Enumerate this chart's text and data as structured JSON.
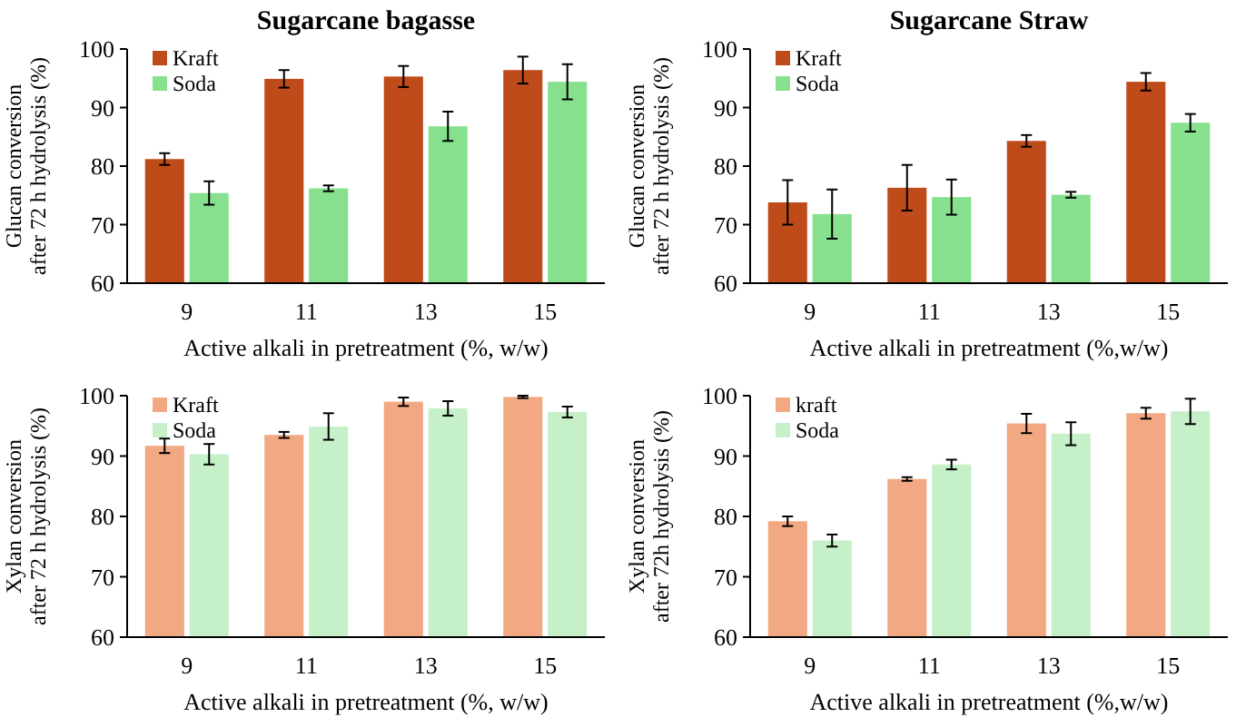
{
  "chart_data": [
    {
      "type": "bar",
      "title": "Sugarcane  bagasse",
      "xlabel": "Active alkali  in pretreatment (%, w/w)",
      "ylabel": "Glucan conversion\nafter 72 h hydrolysis  (%)",
      "categories": [
        "9",
        "11",
        "13",
        "15"
      ],
      "ylim": [
        60,
        100
      ],
      "yticks": [
        60,
        70,
        80,
        90,
        100
      ],
      "legend": "top left",
      "grid": false,
      "series": [
        {
          "name": "Kraft",
          "color": "#c04b1a",
          "values": [
            81.2,
            94.9,
            95.3,
            96.4
          ],
          "errors": [
            1,
            1.5,
            1.8,
            2.3
          ]
        },
        {
          "name": "Soda",
          "color": "#86e08e",
          "values": [
            75.4,
            76.2,
            86.8,
            94.4
          ],
          "errors": [
            2,
            0.5,
            2.5,
            3
          ]
        }
      ]
    },
    {
      "type": "bar",
      "title": "Sugarcane  Straw",
      "xlabel": "Active alkali  in pretreatment (%,w/w)",
      "ylabel": "Glucan conversion\nafter 72 h hydrolysis (%)",
      "categories": [
        "9",
        "11",
        "13",
        "15"
      ],
      "ylim": [
        60,
        100
      ],
      "yticks": [
        60,
        70,
        80,
        90,
        100
      ],
      "legend": "top left",
      "grid": false,
      "series": [
        {
          "name": "Kraft",
          "color": "#c04b1a",
          "values": [
            73.8,
            76.3,
            84.3,
            94.4
          ],
          "errors": [
            3.8,
            3.9,
            1,
            1.5
          ]
        },
        {
          "name": "Soda",
          "color": "#86e08e",
          "values": [
            71.8,
            74.7,
            75.1,
            87.4
          ],
          "errors": [
            4.2,
            3,
            0.5,
            1.5
          ]
        }
      ]
    },
    {
      "type": "bar",
      "xlabel": "Active alkali  in pretreatment (%, w/w)",
      "ylabel": "Xylan conversion\nafter 72 h hydrolysis (%)",
      "categories": [
        "9",
        "11",
        "13",
        "15"
      ],
      "ylim": [
        60,
        100
      ],
      "yticks": [
        60,
        70,
        80,
        90,
        100
      ],
      "legend": "top left",
      "grid": false,
      "series": [
        {
          "name": "Kraft",
          "color": "#f2a882",
          "values": [
            91.7,
            93.5,
            99.0,
            99.8
          ],
          "errors": [
            1.2,
            0.5,
            0.7,
            0.2
          ]
        },
        {
          "name": "Soda",
          "color": "#c5f0c8",
          "values": [
            90.3,
            94.9,
            97.9,
            97.3
          ],
          "errors": [
            1.7,
            2.2,
            1.2,
            0.9
          ]
        }
      ]
    },
    {
      "type": "bar",
      "xlabel": "Active alkali  in pretreatment (%,w/w)",
      "ylabel": "Xylan conversion\nafter 72h hydrolysis (%)",
      "categories": [
        "9",
        "11",
        "13",
        "15"
      ],
      "ylim": [
        60,
        100
      ],
      "yticks": [
        60,
        70,
        80,
        90,
        100
      ],
      "legend": "top left",
      "grid": false,
      "series": [
        {
          "name": "kraft",
          "color": "#f2a882",
          "values": [
            79.2,
            86.2,
            95.4,
            97.1
          ],
          "errors": [
            0.8,
            0.3,
            1.6,
            0.9
          ]
        },
        {
          "name": "Soda",
          "color": "#c5f0c8",
          "values": [
            76.0,
            88.6,
            93.7,
            97.4
          ],
          "errors": [
            1.0,
            0.8,
            1.9,
            2.1
          ]
        }
      ]
    }
  ]
}
